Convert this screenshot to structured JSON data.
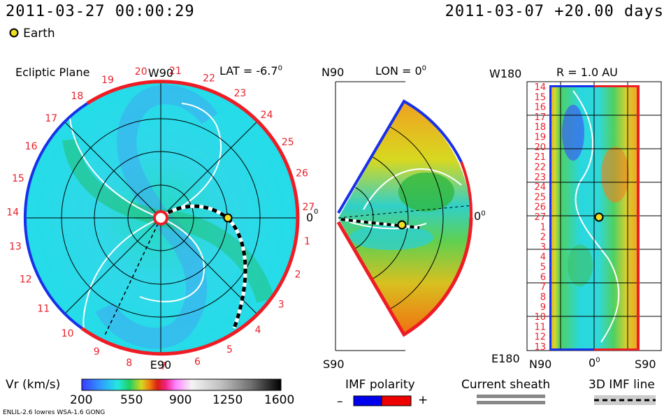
{
  "header": {
    "datetime": "2011-03-27 00:00:29",
    "run": "2011-03-07 +20.00 days",
    "earth_legend": "Earth"
  },
  "panels": {
    "ecliptic": {
      "title": "Ecliptic Plane",
      "top_label": "W90",
      "bottom_label": "E90",
      "lat": "LAT = -6.7",
      "lat_sup": "0",
      "zero_label": "0",
      "zero_sup": "0",
      "ring_labels": [
        "19",
        "20",
        "21",
        "22",
        "23",
        "24",
        "25",
        "26",
        "27",
        "1",
        "2",
        "3",
        "4",
        "5",
        "6",
        "7",
        "8",
        "9",
        "10",
        "11",
        "12",
        "13",
        "14",
        "15",
        "16",
        "17",
        "18"
      ]
    },
    "meridional": {
      "top_label": "N90",
      "bottom_label": "S90",
      "lon": "LON = 0",
      "lon_sup": "0",
      "zero_label": "0",
      "zero_sup": "0"
    },
    "radial": {
      "r_label": "R = 1.0 AU",
      "top_left": "W180",
      "bottom_left": "E180",
      "bottom_axis": [
        "N90",
        "0",
        "S90"
      ],
      "bottom_axis_sup": "0",
      "day_labels": [
        "14",
        "15",
        "16",
        "17",
        "18",
        "19",
        "20",
        "21",
        "22",
        "23",
        "24",
        "25",
        "26",
        "27",
        "1",
        "2",
        "3",
        "4",
        "5",
        "6",
        "7",
        "8",
        "9",
        "10",
        "11",
        "12",
        "13"
      ]
    }
  },
  "colorbar": {
    "label": "Vr (km/s)",
    "ticks": [
      "200",
      "550",
      "900",
      "1250",
      "1600"
    ],
    "colors": [
      "#3a3aff",
      "#2fa0ff",
      "#24e8e0",
      "#20d060",
      "#70d020",
      "#d8d820",
      "#f08010",
      "#d82010",
      "#f02080",
      "#ff80ff",
      "#f0f0f0",
      "#c0c0c0",
      "#808080",
      "#303030",
      "#000000"
    ]
  },
  "legend": {
    "imf_polarity": "IMF polarity",
    "minus": "–",
    "plus": "+",
    "imf_negative_color": "#0000ee",
    "imf_positive_color": "#ee0000",
    "current_sheath": "Current sheath",
    "imf_line": "3D IMF line"
  },
  "footer": {
    "credit": "ENLIL-2.6 lowres WSA-1.6 GONG"
  }
}
